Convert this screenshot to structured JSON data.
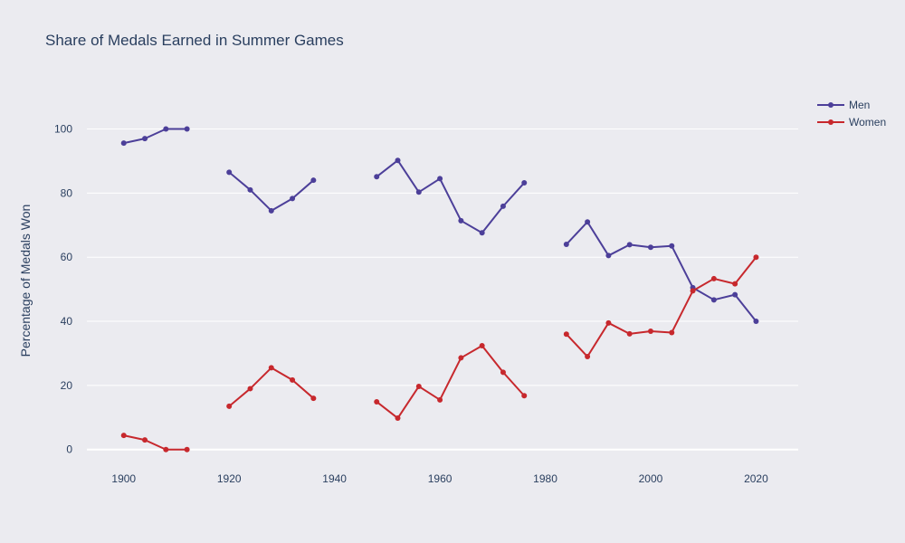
{
  "chart_data": {
    "type": "line",
    "title": "Share of Medals Earned in Summer Games",
    "xlabel": "",
    "ylabel": "Percentage of Medals Won",
    "xlim": [
      1893,
      2028
    ],
    "ylim": [
      -6,
      112
    ],
    "x_ticks": [
      1900,
      1920,
      1940,
      1960,
      1980,
      2000,
      2020
    ],
    "y_ticks": [
      0,
      20,
      40,
      60,
      80,
      100
    ],
    "grid": true,
    "legend": "top-right",
    "x": [
      1900,
      1904,
      1908,
      1912,
      1916,
      1920,
      1924,
      1928,
      1932,
      1936,
      1940,
      1944,
      1948,
      1952,
      1956,
      1960,
      1964,
      1968,
      1972,
      1976,
      1980,
      1984,
      1988,
      1992,
      1996,
      2000,
      2004,
      2008,
      2012,
      2016,
      2020
    ],
    "series": [
      {
        "name": "Men",
        "color": "#4c3f99",
        "values": [
          95.6,
          97,
          100,
          100,
          null,
          86.5,
          81,
          74.5,
          78.3,
          84,
          null,
          null,
          85.1,
          90.2,
          80.3,
          84.5,
          71.4,
          67.6,
          75.9,
          83.2,
          null,
          64,
          71,
          60.5,
          63.9,
          63.1,
          63.5,
          50.5,
          46.7,
          48.3,
          40
        ]
      },
      {
        "name": "Women",
        "color": "#c7282d",
        "values": [
          4.4,
          3,
          0,
          0,
          null,
          13.5,
          19,
          25.5,
          21.7,
          16,
          null,
          null,
          14.9,
          9.8,
          19.7,
          15.5,
          28.6,
          32.4,
          24.1,
          16.8,
          null,
          36,
          29,
          39.5,
          36.1,
          36.9,
          36.5,
          49.5,
          53.3,
          51.7,
          60
        ]
      }
    ]
  }
}
